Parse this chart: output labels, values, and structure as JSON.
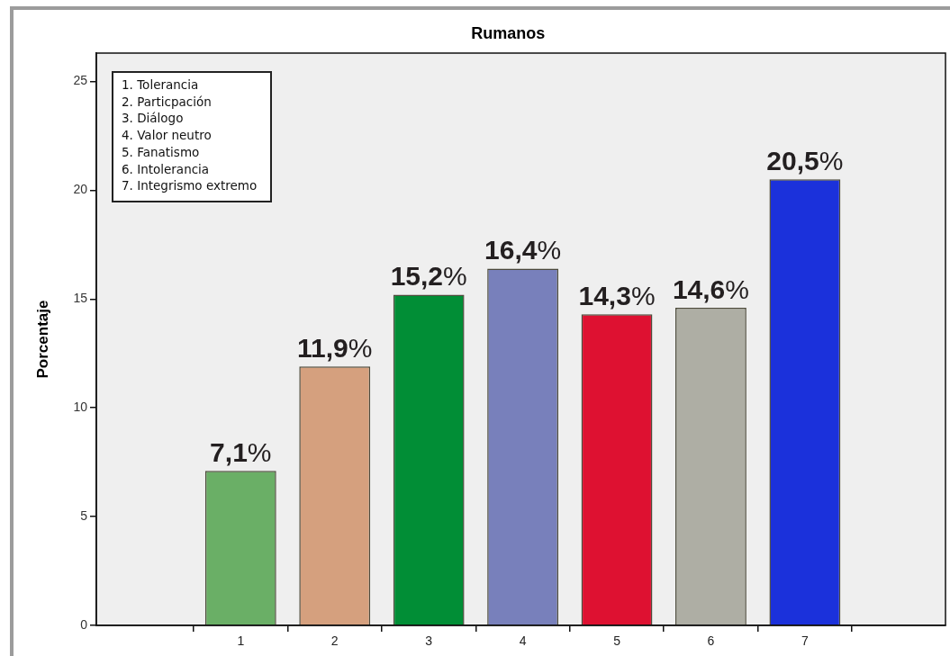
{
  "chart_data": {
    "type": "bar",
    "title": "Rumanos",
    "ylabel": "Porcentaje",
    "categories": [
      "1",
      "2",
      "3",
      "4",
      "5",
      "6",
      "7"
    ],
    "values": [
      7.1,
      11.9,
      15.2,
      16.4,
      14.3,
      14.6,
      20.5
    ],
    "colors": [
      "#6aaf66",
      "#d5a07e",
      "#018e36",
      "#7880bb",
      "#de1131",
      "#aeaea4",
      "#1b31db"
    ],
    "value_labels": [
      "7,1%",
      "11,9%",
      "15,2%",
      "16,4%",
      "14,3%",
      "14,6%",
      "20,5%"
    ],
    "ylim": [
      0,
      26.3
    ],
    "yticks": [
      0,
      5,
      10,
      15,
      20,
      25
    ],
    "annotations": [
      "1. Tolerancia",
      "2. Particpación",
      "3. Diálogo",
      "4. Valor neutro",
      "5. Fanatismo",
      "6. Intolerancia",
      "7. Integrismo extremo"
    ]
  }
}
